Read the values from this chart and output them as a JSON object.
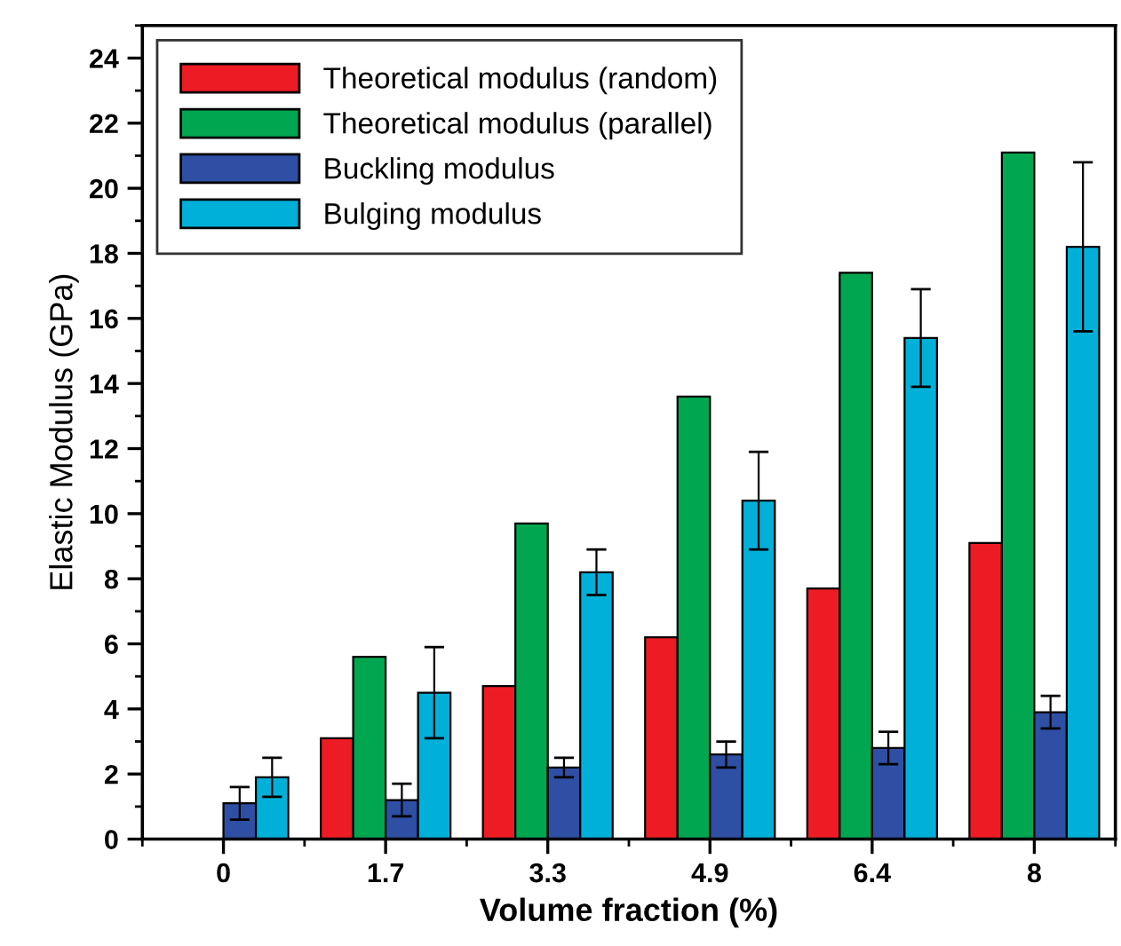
{
  "chart_data": {
    "type": "bar",
    "xlabel": "Volume fraction (%)",
    "ylabel": "Elastic Modulus (GPa)",
    "categories": [
      "0",
      "1.7",
      "3.3",
      "4.9",
      "6.4",
      "8"
    ],
    "series": [
      {
        "name": "Theoretical modulus (random)",
        "color": "#ed1c24",
        "values": [
          null,
          3.1,
          4.7,
          6.2,
          7.7,
          9.1
        ]
      },
      {
        "name": "Theoretical modulus (parallel)",
        "color": "#00a650",
        "values": [
          null,
          5.6,
          9.7,
          13.6,
          17.4,
          21.1
        ]
      },
      {
        "name": "Buckling modulus",
        "color": "#2e4fa3",
        "values": [
          1.1,
          1.2,
          2.2,
          2.6,
          2.8,
          3.9
        ],
        "errors": [
          0.5,
          0.5,
          0.3,
          0.4,
          0.5,
          0.5
        ]
      },
      {
        "name": "Bulging modulus",
        "color": "#00b0d8",
        "values": [
          1.9,
          4.5,
          8.2,
          10.4,
          15.4,
          18.2
        ],
        "errors": [
          0.6,
          1.4,
          0.7,
          1.5,
          1.5,
          2.6
        ]
      }
    ],
    "ylim": [
      0,
      25
    ],
    "yticks": [
      0,
      2,
      4,
      6,
      8,
      10,
      12,
      14,
      16,
      18,
      20,
      22,
      24
    ],
    "grid": false,
    "legend": "top left"
  }
}
